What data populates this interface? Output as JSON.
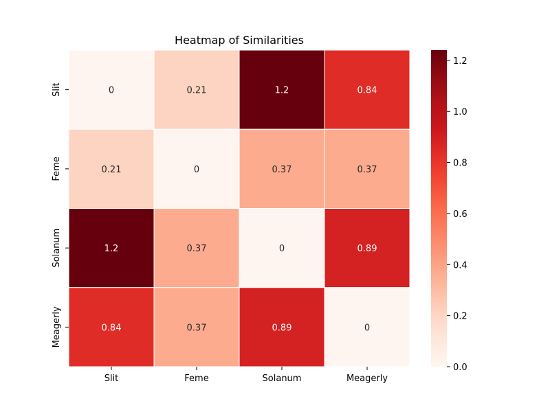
{
  "chart_data": {
    "type": "heatmap",
    "title": "Heatmap of Similarities",
    "xlabel": "",
    "ylabel": "",
    "x_categories": [
      "Slit",
      "Feme",
      "Solanum",
      "Meagerly"
    ],
    "y_categories": [
      "Slit",
      "Feme",
      "Solanum",
      "Meagerly"
    ],
    "values": [
      [
        0,
        0.21,
        1.24,
        0.84
      ],
      [
        0.21,
        0,
        0.37,
        0.37
      ],
      [
        1.24,
        0.37,
        0,
        0.89
      ],
      [
        0.84,
        0.37,
        0.89,
        0
      ]
    ],
    "annotations": [
      [
        "0",
        "0.21",
        "1.2",
        "0.84"
      ],
      [
        "0.21",
        "0",
        "0.37",
        "0.37"
      ],
      [
        "1.2",
        "0.37",
        "0",
        "0.89"
      ],
      [
        "0.84",
        "0.37",
        "0.89",
        "0"
      ]
    ],
    "colormap": "Reds",
    "vmin": 0,
    "vmax": 1.24,
    "colorbar_ticks": [
      "0.0",
      "0.2",
      "0.4",
      "0.6",
      "0.8",
      "1.0",
      "1.2"
    ],
    "colorbar_tick_values": [
      0,
      0.2,
      0.4,
      0.6,
      0.8,
      1.0,
      1.2
    ],
    "grid_line_color": "#ffffff",
    "colorbar": true
  }
}
